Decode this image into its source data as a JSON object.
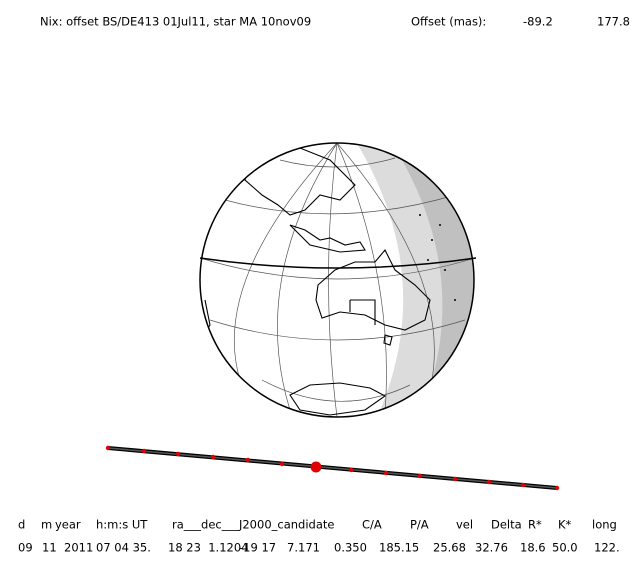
{
  "header": {
    "title": "Nix: offset BS/DE413 01Jul11, star MA 10nov09",
    "offset_label": "Offset (mas):",
    "offset_values": [
      "-89.2",
      "177.8"
    ]
  },
  "table": {
    "headers": [
      "d",
      "m",
      "year",
      "h:m:s UT",
      "ra___dec___J2000_candidate",
      "C/A",
      "P/A",
      "vel",
      "Delta",
      "R*",
      "K*",
      "long"
    ],
    "values": [
      "09",
      "11",
      "2011",
      "07 04 35.",
      "18 23  1.1204",
      "-19 17   7.171",
      "0.350",
      "185.15",
      "25.68",
      "32.76",
      "18.6",
      "50.0",
      "122."
    ]
  }
}
